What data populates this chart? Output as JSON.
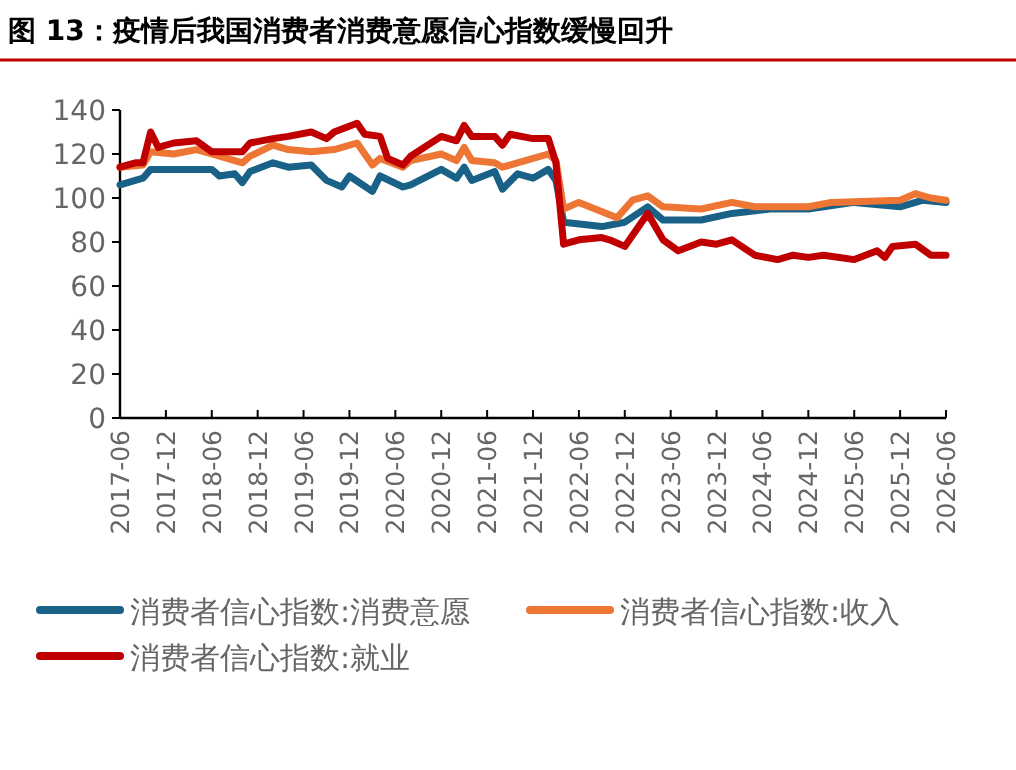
{
  "chart_data": {
    "type": "line",
    "title": "图 13：疫情后我国消费者消费意愿信心指数缓慢回升",
    "xlim": [
      "2017-06",
      "2026-06"
    ],
    "xticks": [
      "2017-06",
      "2017-12",
      "2018-06",
      "2018-12",
      "2019-06",
      "2019-12",
      "2020-06",
      "2020-12",
      "2021-06",
      "2021-12",
      "2022-06",
      "2022-12",
      "2023-06",
      "2023-12",
      "2024-06",
      "2024-12",
      "2025-06",
      "2025-12",
      "2026-06"
    ],
    "ylim": [
      0,
      140
    ],
    "yticks": [
      0,
      20,
      40,
      60,
      80,
      100,
      120,
      140
    ],
    "grid": false,
    "legend": "bottom",
    "marker": "none",
    "line_style": "solid",
    "series": [
      {
        "name": "消费者信心指数:消费意愿",
        "color": "#1a6187",
        "x": [
          "2017-06",
          "2017-08",
          "2017-09",
          "2017-10",
          "2018-01",
          "2018-04",
          "2018-06",
          "2018-07",
          "2018-09",
          "2018-10",
          "2018-11",
          "2019-02",
          "2019-04",
          "2019-07",
          "2019-09",
          "2019-11",
          "2019-12",
          "2020-03",
          "2020-04",
          "2020-07",
          "2020-08",
          "2020-12",
          "2021-02",
          "2021-03",
          "2021-04",
          "2021-07",
          "2021-08",
          "2021-10",
          "2021-12",
          "2022-02",
          "2022-03",
          "2022-04",
          "2022-09",
          "2022-12",
          "2023-03",
          "2023-05",
          "2023-10",
          "2024-02",
          "2024-07",
          "2024-12",
          "2025-06",
          "2025-12",
          "2026-03",
          "2026-06"
        ],
        "values": [
          106,
          108,
          109,
          113,
          113,
          113,
          113,
          110,
          111,
          107,
          112,
          116,
          114,
          115,
          108,
          105,
          110,
          103,
          110,
          105,
          106,
          113,
          109,
          114,
          108,
          112,
          104,
          111,
          109,
          113,
          108,
          89,
          87,
          89,
          96,
          90,
          90,
          93,
          95,
          95,
          98,
          96,
          99,
          98
        ]
      },
      {
        "name": "消费者信心指数:收入",
        "color": "#ee7634",
        "x": [
          "2017-06",
          "2017-09",
          "2017-10",
          "2018-01",
          "2018-04",
          "2018-06",
          "2018-09",
          "2018-10",
          "2018-11",
          "2019-02",
          "2019-04",
          "2019-07",
          "2019-10",
          "2020-01",
          "2020-03",
          "2020-04",
          "2020-07",
          "2020-08",
          "2020-12",
          "2021-02",
          "2021-03",
          "2021-04",
          "2021-07",
          "2021-08",
          "2021-11",
          "2022-02",
          "2022-03",
          "2022-04",
          "2022-06",
          "2022-11",
          "2023-01",
          "2023-03",
          "2023-05",
          "2023-10",
          "2024-02",
          "2024-05",
          "2024-12",
          "2025-03",
          "2025-12",
          "2026-02",
          "2026-04",
          "2026-06"
        ],
        "values": [
          114,
          115,
          121,
          120,
          122,
          120,
          117,
          116,
          119,
          124,
          122,
          121,
          122,
          125,
          115,
          118,
          114,
          117,
          120,
          117,
          123,
          117,
          116,
          114,
          117,
          120,
          117,
          95,
          98,
          91,
          99,
          101,
          96,
          95,
          98,
          96,
          96,
          98,
          99,
          102,
          100,
          99
        ]
      },
      {
        "name": "消费者信心指数:就业",
        "color": "#c00000",
        "x": [
          "2017-06",
          "2017-08",
          "2017-09",
          "2017-10",
          "2017-11",
          "2018-01",
          "2018-04",
          "2018-06",
          "2018-09",
          "2018-10",
          "2018-11",
          "2019-02",
          "2019-04",
          "2019-07",
          "2019-09",
          "2019-10",
          "2020-01",
          "2020-02",
          "2020-04",
          "2020-05",
          "2020-07",
          "2020-08",
          "2020-12",
          "2021-02",
          "2021-03",
          "2021-04",
          "2021-07",
          "2021-08",
          "2021-09",
          "2021-12",
          "2022-02",
          "2022-03",
          "2022-04",
          "2022-06",
          "2022-09",
          "2022-10",
          "2022-12",
          "2023-03",
          "2023-05",
          "2023-07",
          "2023-10",
          "2023-12",
          "2024-02",
          "2024-05",
          "2024-08",
          "2024-10",
          "2024-12",
          "2025-02",
          "2025-06",
          "2025-09",
          "2025-10",
          "2025-11",
          "2026-02",
          "2026-04",
          "2026-06"
        ],
        "values": [
          114,
          116,
          116,
          130,
          123,
          125,
          126,
          121,
          121,
          121,
          125,
          127,
          128,
          130,
          127,
          130,
          134,
          129,
          128,
          118,
          115,
          119,
          128,
          126,
          133,
          128,
          128,
          124,
          129,
          127,
          127,
          116,
          79,
          81,
          82,
          81,
          78,
          93,
          81,
          76,
          80,
          79,
          81,
          74,
          72,
          74,
          73,
          74,
          72,
          76,
          73,
          78,
          79,
          74,
          74
        ]
      }
    ]
  }
}
